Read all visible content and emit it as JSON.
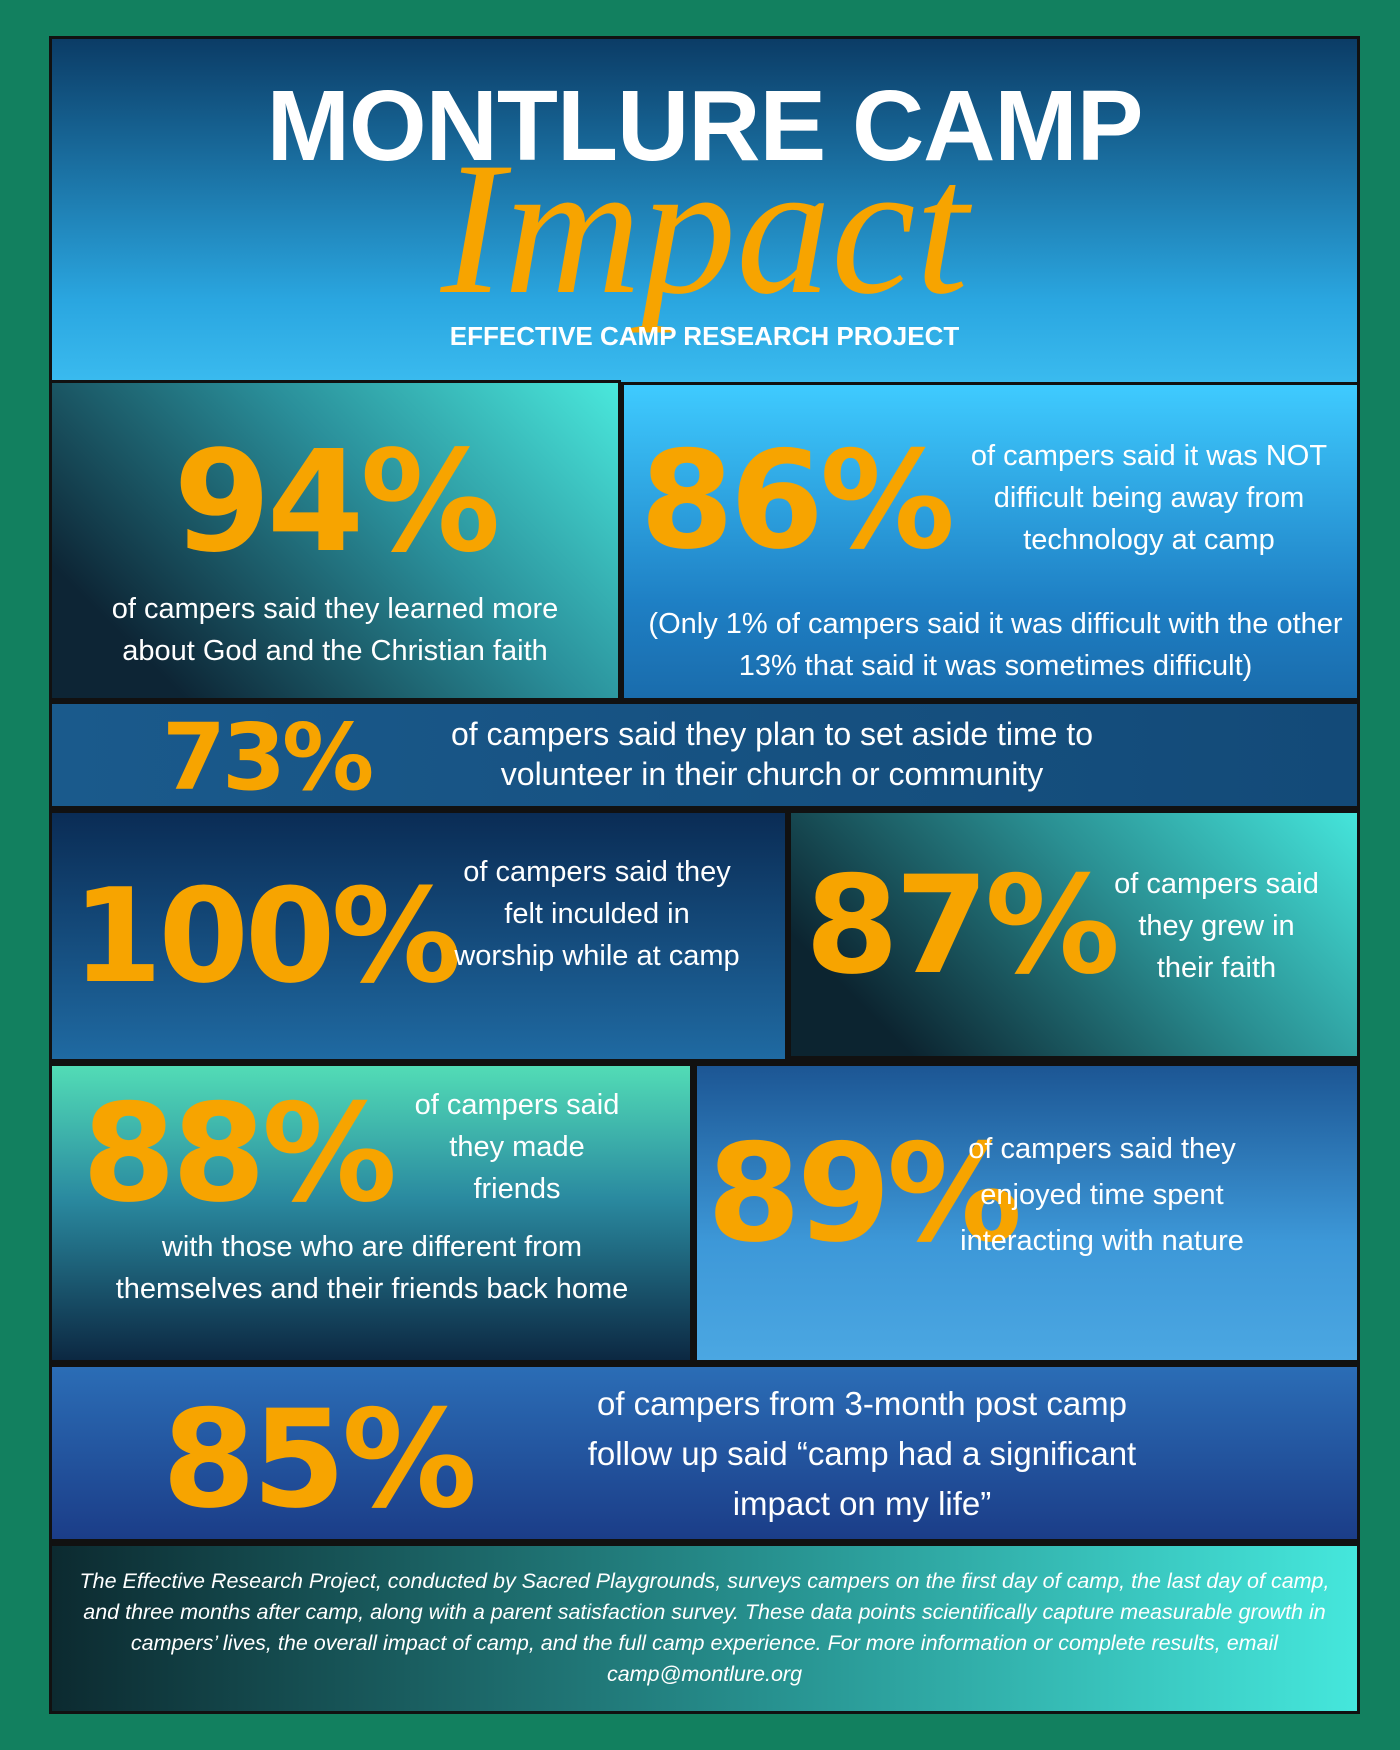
{
  "header": {
    "title": "MONTLURE CAMP",
    "script": "Impact",
    "subtitle": "EFFECTIVE CAMP RESEARCH PROJECT"
  },
  "stats": [
    {
      "value": "94%",
      "text": "of campers said they learned more about God  and the Christian faith"
    },
    {
      "value": "86%",
      "text": "of campers said it was NOT difficult being away from technology at camp",
      "note": "(Only 1% of campers said it was difficult with the other 13% that said it was sometimes difficult)"
    },
    {
      "value": "73%",
      "text": "of campers said they plan to set aside time to volunteer in their church or community"
    },
    {
      "value": "100%",
      "text": "of campers said they felt inculded in worship while at camp"
    },
    {
      "value": "87%",
      "text": "of campers said they grew in their faith"
    },
    {
      "value": "88%",
      "text": "of campers said they made friends",
      "more": "with those who are different from themselves and their friends back home"
    },
    {
      "value": "89%",
      "text": "of campers said they enjoyed time spent interacting with nature"
    },
    {
      "value": "85%",
      "text": "of campers from 3-month post camp follow up said “camp had a significant impact on my life”"
    }
  ],
  "footer": "The Effective Research Project, conducted by Sacred Playgrounds, surveys campers on the first day of camp, the last day of camp, and three months after camp, along with a parent satisfaction survey. These data points scientifically capture measurable growth in campers’ lives, the overall impact of camp, and the full camp experience. For more information or complete results, email camp@montlure.org"
}
